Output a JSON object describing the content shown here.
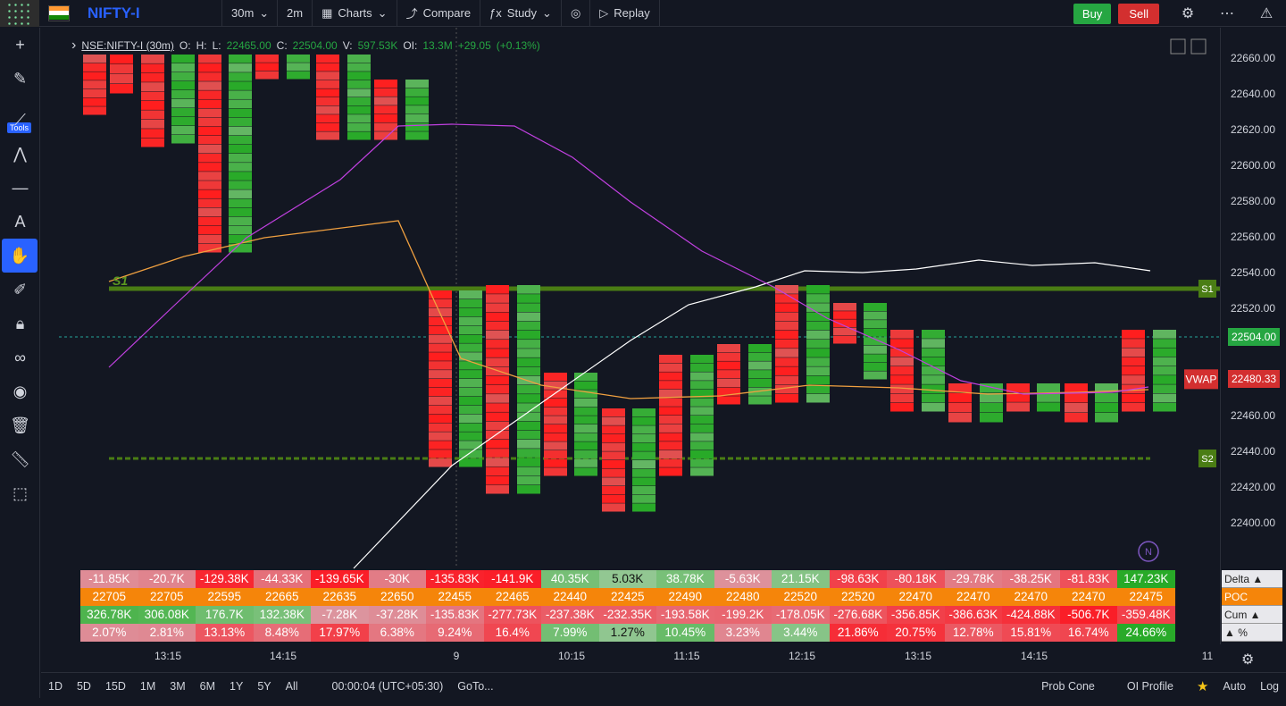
{
  "topbar": {
    "symbol": "NIFTY-I",
    "timeframe": "30m",
    "interval2": "2m",
    "charts_label": "Charts",
    "compare_label": "Compare",
    "study_label": "Study",
    "replay_label": "Replay",
    "buy_label": "Buy",
    "sell_label": "Sell"
  },
  "legend": {
    "symbol": "NSE:NIFTY-I (30m)",
    "o_label": "O:",
    "h_label": "H:",
    "l_label": "L:",
    "l_val": "22465.00",
    "c_label": "C:",
    "c_val": "22504.00",
    "v_label": "V:",
    "v_val": "597.53K",
    "oi_label": "OI:",
    "oi_val": "13.3M",
    "change": "+29.05",
    "change_pct": "(+0.13%)"
  },
  "left_tools": [
    "crosshair-icon",
    "pencil-icon",
    "trend-line-icon",
    "pattern-icon",
    "horizontal-line-icon",
    "text-icon",
    "hand-icon",
    "brush-icon",
    "lock-icon",
    "link-icon",
    "eye-icon",
    "trash-icon",
    "ruler-icon",
    "cursor-icon"
  ],
  "tools_label": "Tools",
  "price_axis": {
    "labels": [
      "22660.00",
      "22640.00",
      "22620.00",
      "22600.00",
      "22580.00",
      "22560.00",
      "22540.00",
      "22520.00",
      "22480.00",
      "22460.00",
      "22440.00",
      "22420.00",
      "22400.00"
    ],
    "last_price": "22504.00",
    "vwap_label": "VWAP",
    "vwap_price": "22480.33",
    "s1": "S1",
    "s2": "S2",
    "colors": {
      "last": "#26a642",
      "vwap": "#d32f2f",
      "level": "#4a7d14"
    }
  },
  "time_axis": [
    "13:15",
    "14:15",
    "9",
    "10:15",
    "11:15",
    "12:15",
    "13:15",
    "14:15",
    "11"
  ],
  "bottom_table": {
    "rows": [
      {
        "name": "Delta",
        "values": [
          "-11.85K",
          "-20.7K",
          "-129.38K",
          "-44.33K",
          "-139.65K",
          "-30K",
          "-135.83K",
          "-141.9K",
          "40.35K",
          "5.03K",
          "38.78K",
          "-5.63K",
          "21.15K",
          "-98.63K",
          "-80.18K",
          "-29.78K",
          "-38.25K",
          "-81.83K",
          "147.23K"
        ]
      },
      {
        "name": "POC",
        "values": [
          "22705",
          "22705",
          "22595",
          "22665",
          "22635",
          "22650",
          "22455",
          "22465",
          "22440",
          "22425",
          "22490",
          "22480",
          "22520",
          "22520",
          "22470",
          "22470",
          "22470",
          "22470",
          "22475"
        ]
      },
      {
        "name": "Cum",
        "values": [
          "326.78K",
          "306.08K",
          "176.7K",
          "132.38K",
          "-7.28K",
          "-37.28K",
          "-135.83K",
          "-277.73K",
          "-237.38K",
          "-232.35K",
          "-193.58K",
          "-199.2K",
          "-178.05K",
          "-276.68K",
          "-356.85K",
          "-386.63K",
          "-424.88K",
          "-506.7K",
          "-359.48K"
        ]
      },
      {
        "name": "%",
        "values": [
          "2.07%",
          "2.81%",
          "13.13%",
          "8.48%",
          "17.97%",
          "6.38%",
          "9.24%",
          "16.4%",
          "7.99%",
          "1.27%",
          "10.45%",
          "3.23%",
          "3.44%",
          "21.86%",
          "20.75%",
          "12.78%",
          "15.81%",
          "16.74%",
          "24.66%"
        ]
      }
    ],
    "legend": [
      "Delta ▲",
      "POC",
      "Cum ▲",
      "▲ %"
    ]
  },
  "bottombar": {
    "ranges": [
      "1D",
      "5D",
      "15D",
      "1M",
      "3M",
      "6M",
      "1Y",
      "5Y",
      "All"
    ],
    "clock": "00:00:04 (UTC+05:30)",
    "goto": "GoTo...",
    "prob_cone": "Prob Cone",
    "oi_profile": "OI Profile",
    "auto": "Auto",
    "log": "Log"
  }
}
